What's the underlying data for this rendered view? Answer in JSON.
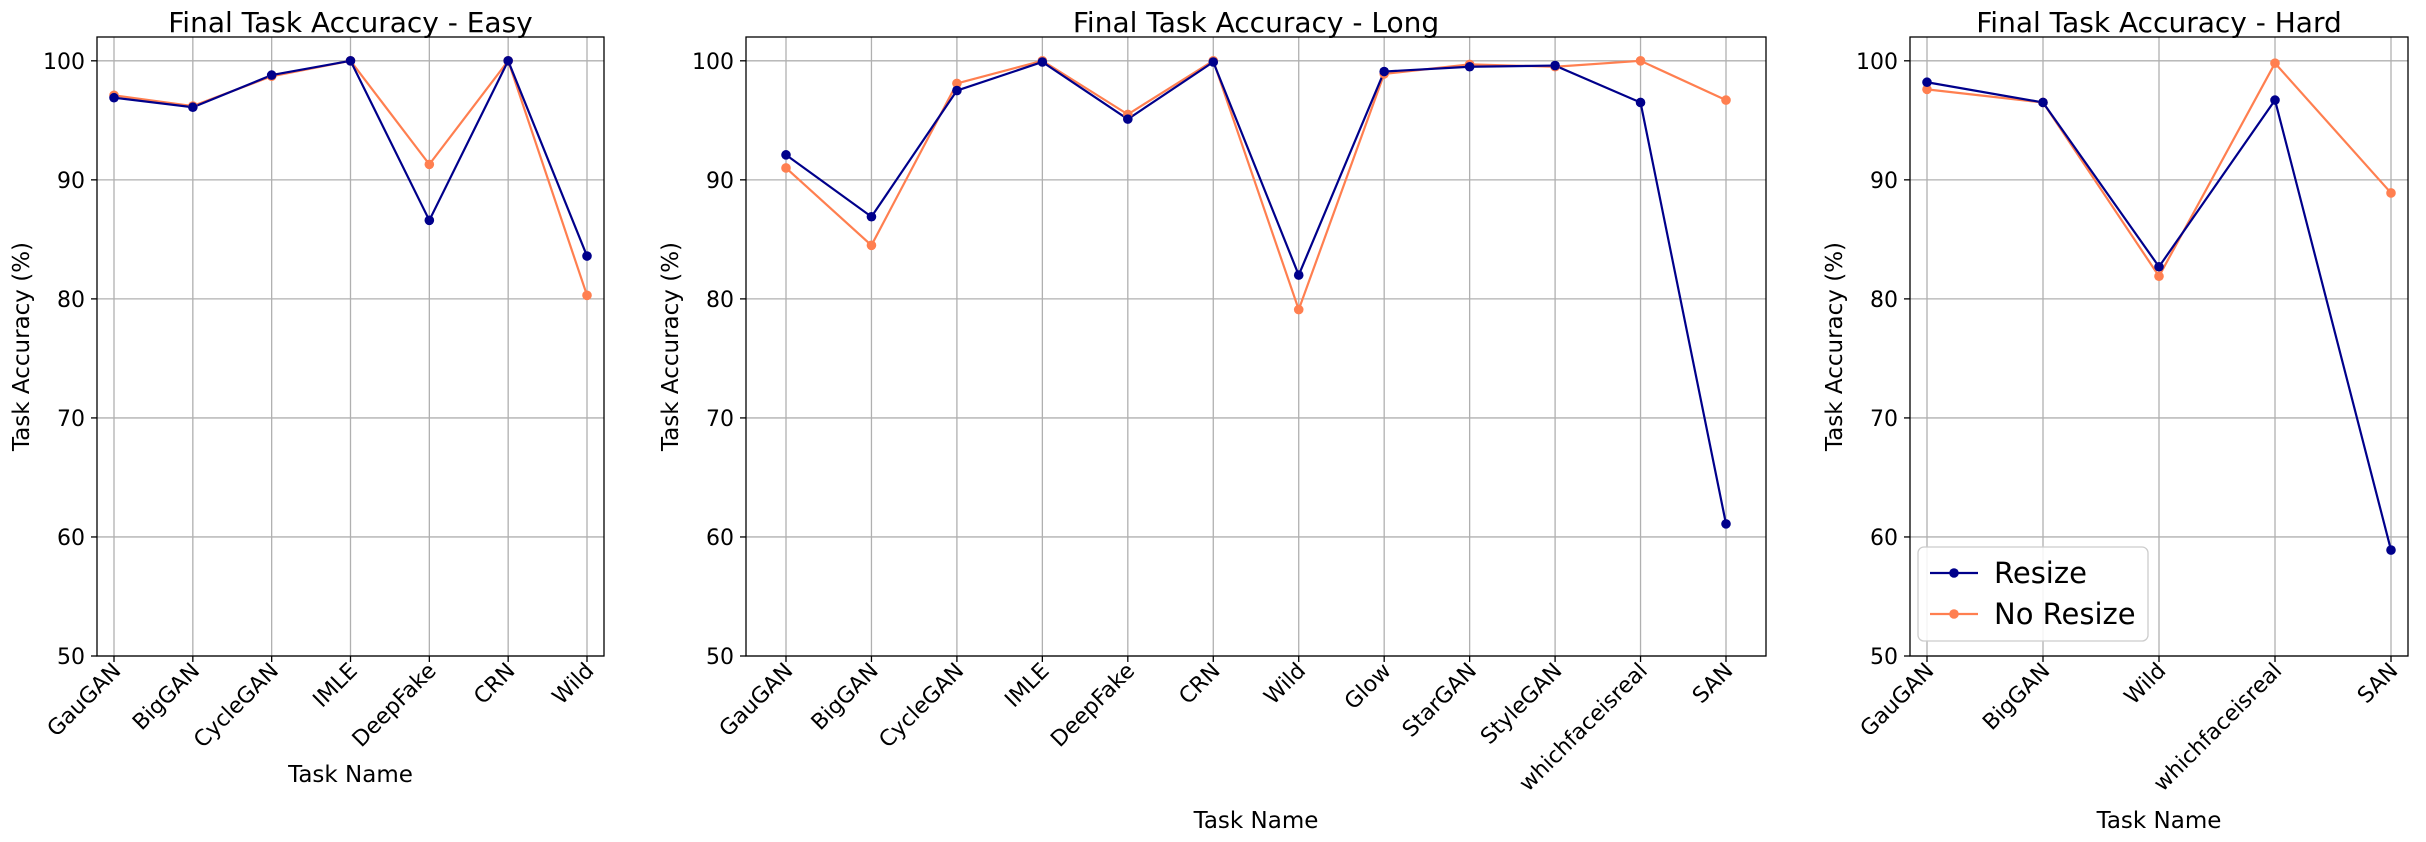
{
  "chart_data": [
    {
      "type": "line",
      "title": "Final Task Accuracy - Easy",
      "xlabel": "Task Name",
      "ylabel": "Task Accuracy (%)",
      "ylim": [
        50,
        102
      ],
      "yticks": [
        50,
        60,
        70,
        80,
        90,
        100
      ],
      "grid": true,
      "categories": [
        "GauGAN",
        "BigGAN",
        "CycleGAN",
        "IMLE",
        "DeepFake",
        "CRN",
        "Wild"
      ],
      "series": [
        {
          "name": "Resize",
          "color": "#00008b",
          "values": [
            96.9,
            96.1,
            98.8,
            100.0,
            86.6,
            100.0,
            83.6
          ]
        },
        {
          "name": "No Resize",
          "color": "#ff7f50",
          "values": [
            97.1,
            96.2,
            98.7,
            100.0,
            91.3,
            100.0,
            80.3
          ]
        }
      ]
    },
    {
      "type": "line",
      "title": "Final Task Accuracy - Long",
      "xlabel": "Task Name",
      "ylabel": "Task Accuracy (%)",
      "ylim": [
        50,
        102
      ],
      "yticks": [
        50,
        60,
        70,
        80,
        90,
        100
      ],
      "grid": true,
      "categories": [
        "GauGAN",
        "BigGAN",
        "CycleGAN",
        "IMLE",
        "DeepFake",
        "CRN",
        "Wild",
        "Glow",
        "StarGAN",
        "StyleGAN",
        "whichfaceisreal",
        "SAN"
      ],
      "series": [
        {
          "name": "Resize",
          "color": "#00008b",
          "values": [
            92.1,
            86.9,
            97.5,
            99.9,
            95.1,
            99.9,
            82.0,
            99.1,
            99.5,
            99.6,
            96.5,
            61.1
          ]
        },
        {
          "name": "No Resize",
          "color": "#ff7f50",
          "values": [
            91.0,
            84.5,
            98.1,
            100.0,
            95.5,
            100.0,
            79.1,
            98.9,
            99.7,
            99.5,
            100.0,
            96.7
          ]
        }
      ]
    },
    {
      "type": "line",
      "title": "Final Task Accuracy - Hard",
      "xlabel": "Task Name",
      "ylabel": "Task Accuracy (%)",
      "ylim": [
        50,
        102
      ],
      "yticks": [
        50,
        60,
        70,
        80,
        90,
        100
      ],
      "grid": true,
      "legend_position": "lower-left",
      "categories": [
        "GauGAN",
        "BigGAN",
        "Wild",
        "whichfaceisreal",
        "SAN"
      ],
      "series": [
        {
          "name": "Resize",
          "color": "#00008b",
          "values": [
            98.2,
            96.5,
            82.7,
            96.7,
            58.9
          ]
        },
        {
          "name": "No Resize",
          "color": "#ff7f50",
          "values": [
            97.6,
            96.5,
            81.9,
            99.8,
            88.9
          ]
        }
      ]
    }
  ]
}
